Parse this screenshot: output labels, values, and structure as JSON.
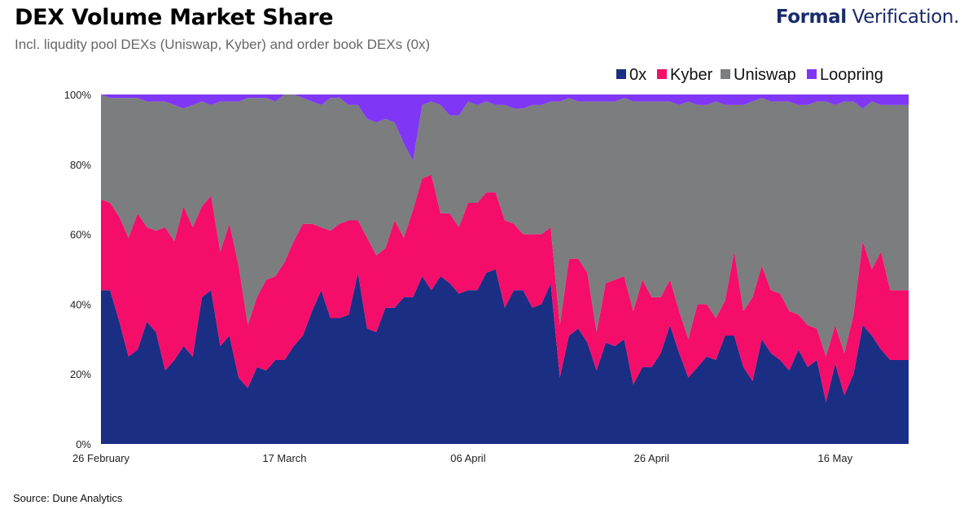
{
  "header": {
    "title": "DEX Volume Market Share",
    "subtitle": "Incl. liqudity pool DEXs (Uniswap, Kyber) and order book DEXs (0x)",
    "brand_strong": "Formal",
    "brand_rest": " Verification."
  },
  "footer": {
    "source": "Source: Dune Analytics"
  },
  "chart_data": {
    "type": "area",
    "stacked": true,
    "normalized": true,
    "title": "DEX Volume Market Share",
    "ylim": [
      0,
      100
    ],
    "y_ticks": [
      0,
      20,
      40,
      60,
      80,
      100
    ],
    "y_tick_labels": [
      "0%",
      "20%",
      "40%",
      "60%",
      "80%",
      "100%"
    ],
    "x_tick_labels": [
      {
        "label": "26 February",
        "index": 0
      },
      {
        "label": "17 March",
        "index": 20
      },
      {
        "label": "06 April",
        "index": 40
      },
      {
        "label": "26 April",
        "index": 60
      },
      {
        "label": "16 May",
        "index": 80
      }
    ],
    "legend_position": "top-right",
    "x_count": 89,
    "series": [
      {
        "name": "0x",
        "color": "#1a2e84",
        "values": [
          44,
          44,
          35,
          25,
          27,
          35,
          32,
          21,
          24,
          28,
          25,
          42,
          44,
          28,
          31,
          19,
          16,
          22,
          21,
          24,
          24,
          28,
          31,
          38,
          44,
          36,
          36,
          37,
          49,
          33,
          32,
          39,
          39,
          42,
          42,
          48,
          44,
          48,
          46,
          43,
          44,
          44,
          49,
          50,
          39,
          44,
          44,
          39,
          40,
          46,
          19,
          31,
          33,
          29,
          21,
          29,
          28,
          30,
          17,
          22,
          22,
          26,
          34,
          26,
          19,
          22,
          25,
          24,
          31,
          31,
          22,
          18,
          30,
          26,
          24,
          21,
          27,
          22,
          24,
          12,
          23,
          14,
          20,
          34,
          31,
          27,
          24,
          24,
          24
        ]
      },
      {
        "name": "Kyber",
        "color": "#f50d6a",
        "values": [
          26,
          25,
          30,
          34,
          39,
          27,
          29,
          41,
          34,
          40,
          37,
          26,
          27,
          27,
          32,
          32,
          18,
          20,
          26,
          24,
          28,
          30,
          32,
          25,
          18,
          25,
          27,
          27,
          15,
          26,
          22,
          17,
          25,
          17,
          25,
          28,
          33,
          18,
          20,
          19,
          25,
          25,
          23,
          22,
          25,
          19,
          16,
          21,
          20,
          16,
          15,
          22,
          20,
          20,
          11,
          17,
          19,
          18,
          21,
          25,
          20,
          16,
          13,
          12,
          11,
          18,
          15,
          12,
          10,
          24,
          16,
          24,
          21,
          18,
          19,
          17,
          10,
          12,
          9,
          13,
          11,
          12,
          17,
          24,
          19,
          28,
          20,
          20,
          20
        ]
      },
      {
        "name": "Uniswap",
        "color": "#7b7d7e",
        "values": [
          30,
          30,
          34,
          40,
          33,
          36,
          37,
          36,
          39,
          28,
          35,
          30,
          26,
          43,
          35,
          47,
          65,
          57,
          52,
          50,
          48,
          42,
          36,
          35,
          35,
          38,
          36,
          33,
          33,
          34,
          38,
          37,
          28,
          27,
          14,
          21,
          21,
          31,
          28,
          32,
          29,
          28,
          26,
          25,
          33,
          33,
          36,
          37,
          37,
          36,
          64,
          46,
          45,
          49,
          66,
          52,
          51,
          51,
          60,
          51,
          56,
          56,
          51,
          59,
          68,
          57,
          57,
          62,
          56,
          42,
          59,
          56,
          48,
          54,
          55,
          60,
          60,
          63,
          65,
          73,
          63,
          72,
          61,
          38,
          48,
          42,
          53,
          53,
          53
        ]
      },
      {
        "name": "Loopring",
        "color": "#7f36f5",
        "values": [
          0,
          1,
          1,
          1,
          1,
          2,
          2,
          2,
          3,
          4,
          3,
          2,
          3,
          2,
          2,
          2,
          1,
          1,
          1,
          2,
          0,
          0,
          1,
          2,
          3,
          1,
          1,
          3,
          3,
          7,
          8,
          7,
          8,
          14,
          19,
          3,
          2,
          3,
          6,
          6,
          2,
          3,
          2,
          3,
          3,
          4,
          4,
          3,
          3,
          2,
          2,
          1,
          2,
          2,
          2,
          2,
          2,
          1,
          2,
          2,
          2,
          2,
          2,
          3,
          2,
          3,
          3,
          2,
          3,
          3,
          3,
          2,
          1,
          2,
          2,
          2,
          3,
          3,
          2,
          2,
          3,
          2,
          2,
          4,
          2,
          3,
          3,
          3,
          3
        ]
      }
    ]
  }
}
